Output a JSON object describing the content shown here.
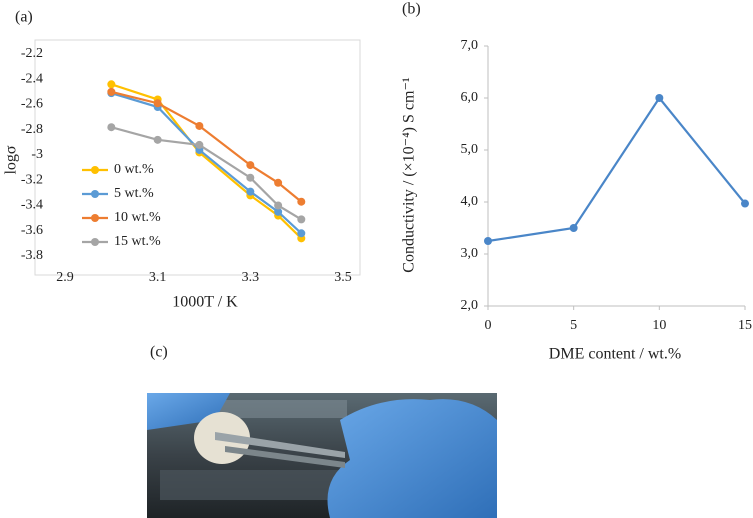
{
  "chart_data": [
    {
      "type": "line",
      "label": "(a)",
      "ylabel": "logσ",
      "xlabel": "1000T / K",
      "x": [
        3.0,
        3.1,
        3.19,
        3.3,
        3.36,
        3.41
      ],
      "xlim": [
        2.9,
        3.5
      ],
      "xticks": [
        2.9,
        3.1,
        3.3,
        3.5
      ],
      "ylim": [
        -3.8,
        -2.2
      ],
      "yticks": [
        -2.2,
        -2.4,
        -2.6,
        -2.8,
        -3,
        -3.2,
        -3.4,
        -3.6,
        -3.8
      ],
      "grid": false,
      "legend": "lower-left",
      "series": [
        {
          "name": "0 wt.%",
          "color": "#ffc000",
          "values": [
            -2.44,
            -2.56,
            -2.98,
            -3.32,
            -3.48,
            -3.66
          ]
        },
        {
          "name": "5 wt.%",
          "color": "#5b9bd5",
          "values": [
            -2.51,
            -2.62,
            -2.96,
            -3.29,
            -3.45,
            -3.62
          ]
        },
        {
          "name": "10 wt.%",
          "color": "#ed7d31",
          "values": [
            -2.5,
            -2.59,
            -2.77,
            -3.08,
            -3.22,
            -3.37
          ]
        },
        {
          "name": "15 wt.%",
          "color": "#a5a5a5",
          "values": [
            -2.78,
            -2.88,
            -2.92,
            -3.18,
            -3.4,
            -3.51
          ]
        }
      ]
    },
    {
      "type": "line",
      "label": "(b)",
      "ylabel": "Conductivity    / (×10⁻⁴) S cm⁻¹",
      "xlabel": "DME content / wt.%",
      "x": [
        0,
        5,
        10,
        15
      ],
      "xlim": [
        0,
        15
      ],
      "xticks": [
        0,
        5,
        10,
        15
      ],
      "ylim": [
        2,
        7
      ],
      "yticks": [
        {
          "value": 2,
          "label": "2,0"
        },
        {
          "value": 3,
          "label": "3,0"
        },
        {
          "value": 4,
          "label": "4,0"
        },
        {
          "value": 5,
          "label": "5,0"
        },
        {
          "value": 6,
          "label": "6,0"
        },
        {
          "value": 7,
          "label": "7,0"
        }
      ],
      "grid": false,
      "color": "#4a86c8",
      "values": [
        3.25,
        3.5,
        6.0,
        3.97
      ]
    }
  ],
  "photo_label": "(c)"
}
